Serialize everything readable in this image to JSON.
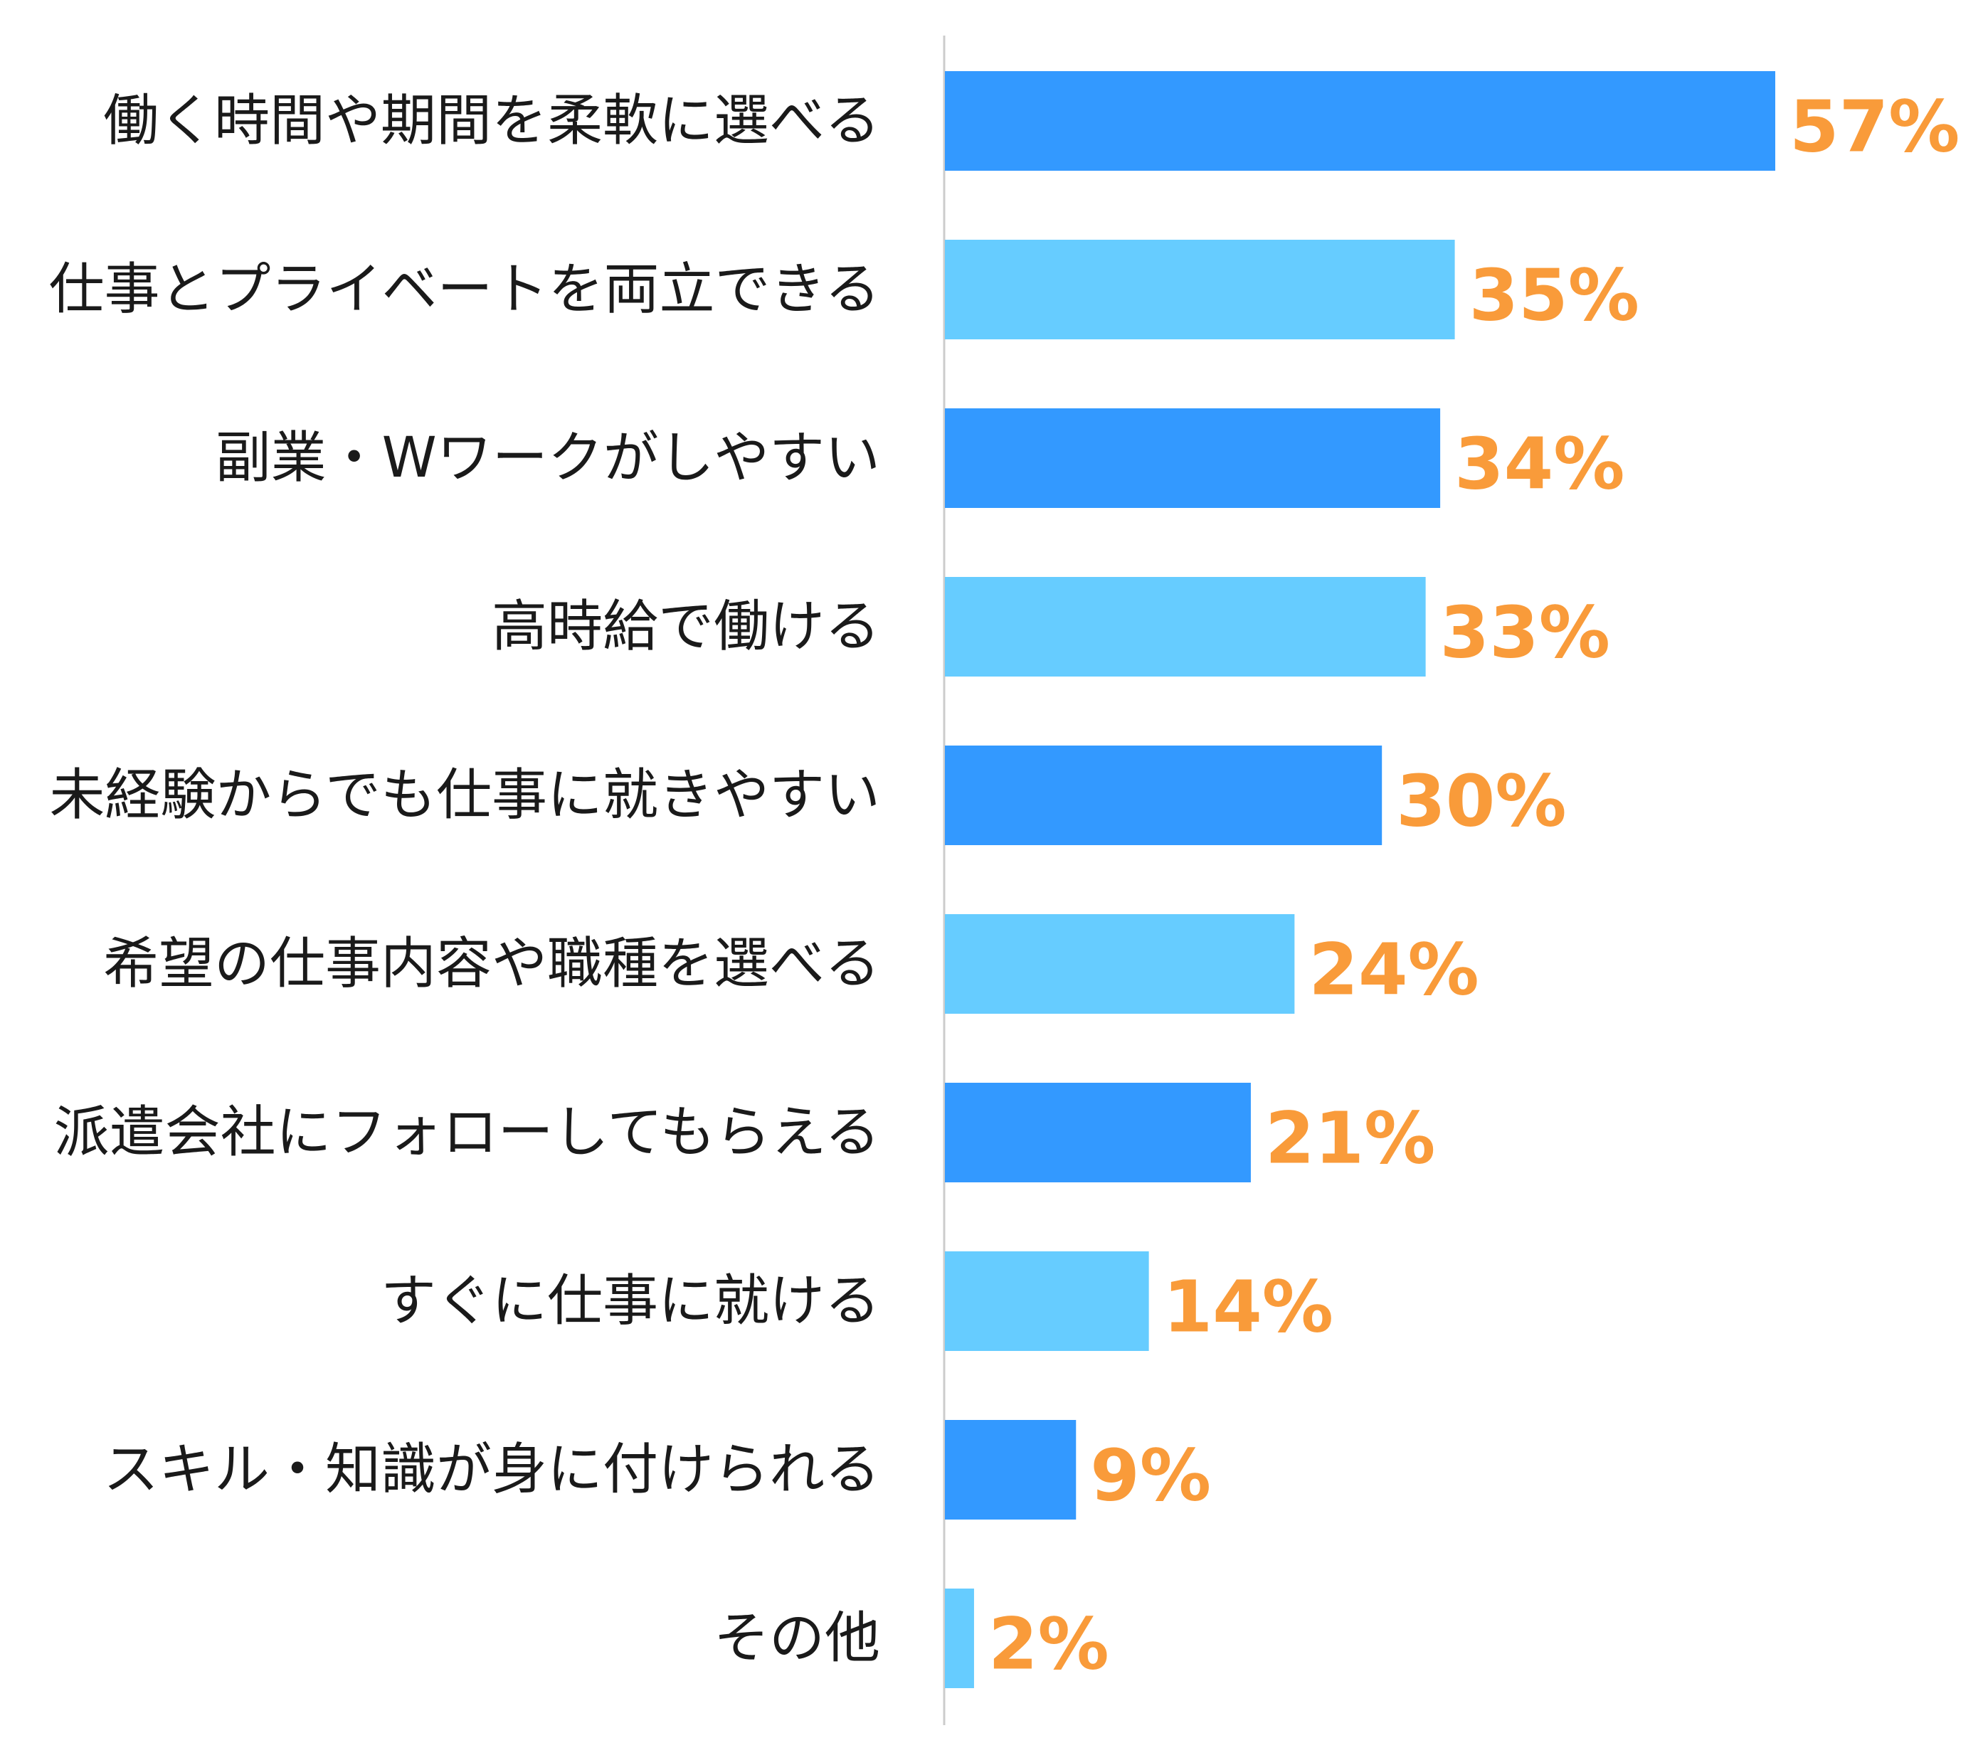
{
  "chart_data": {
    "type": "bar",
    "orientation": "horizontal",
    "categories": [
      "働く時間や期間を柔軟に選べる",
      "仕事とプライベートを両立できる",
      "副業・Wワークがしやすい",
      "高時給で働ける",
      "未経験からでも仕事に就きやすい",
      "希望の仕事内容や職種を選べる",
      "派遣会社にフォローしてもらえる",
      "すぐに仕事に就ける",
      "スキル・知識が身に付けられる",
      "その他"
    ],
    "values": [
      57,
      35,
      34,
      33,
      30,
      24,
      21,
      14,
      9,
      2
    ],
    "value_labels": [
      "57%",
      "35%",
      "34%",
      "33%",
      "30%",
      "24%",
      "21%",
      "14%",
      "9%",
      "2%"
    ],
    "unit": "%",
    "xlim": [
      0,
      60
    ],
    "grid": false,
    "legend": "none",
    "colors": {
      "bar_primary": "#3399ff",
      "bar_secondary": "#66ccff",
      "value_label": "#f99b3a",
      "axis_line": "#cccccc"
    }
  }
}
